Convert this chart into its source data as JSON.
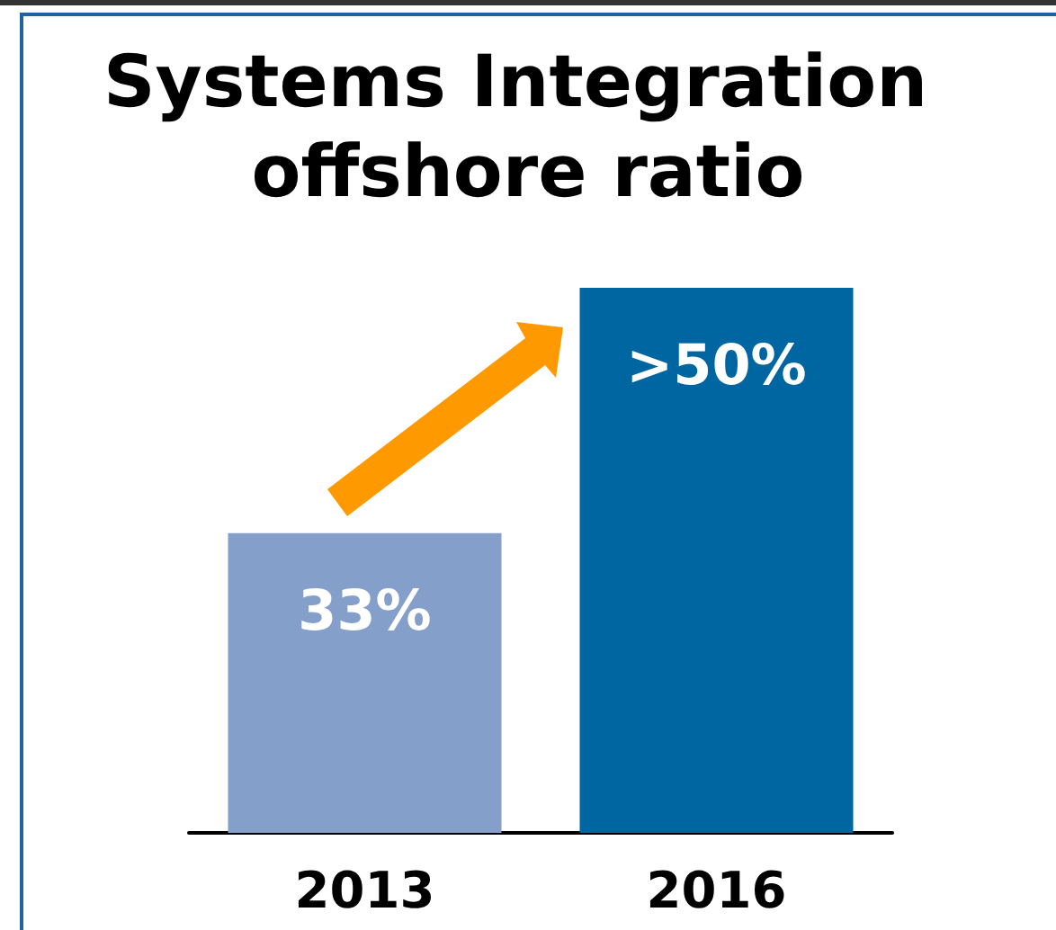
{
  "chart_data": {
    "type": "bar",
    "title": "Systems Integration offshore ratio",
    "categories": [
      "2013",
      "2016"
    ],
    "values": [
      33,
      60
    ],
    "colors": [
      "#849fc9",
      "#0066a1"
    ],
    "value_labels": [
      "33%",
      ">50%"
    ]
  }
}
